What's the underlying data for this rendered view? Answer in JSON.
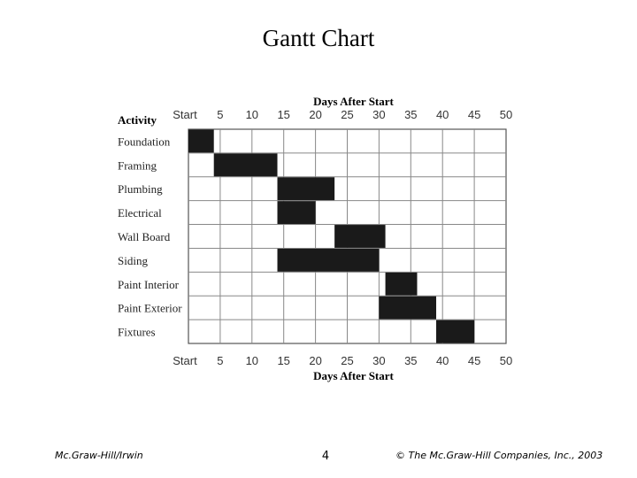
{
  "slide": {
    "title": "Gantt Chart",
    "footer_left": "Mc.Graw-Hill/Irwin",
    "page_number": "4",
    "footer_right": "© The Mc.Graw-Hill Companies, Inc., 2003"
  },
  "chart_data": {
    "type": "gantt",
    "title": "",
    "axis_title_top": "Days After Start",
    "axis_title_bottom": "Days After Start",
    "category_header": "Activity",
    "xlim": [
      0,
      50
    ],
    "x_ticks": [
      {
        "value": 0,
        "label": "Start"
      },
      {
        "value": 5,
        "label": "5"
      },
      {
        "value": 10,
        "label": "10"
      },
      {
        "value": 15,
        "label": "15"
      },
      {
        "value": 20,
        "label": "20"
      },
      {
        "value": 25,
        "label": "25"
      },
      {
        "value": 30,
        "label": "30"
      },
      {
        "value": 35,
        "label": "35"
      },
      {
        "value": 40,
        "label": "40"
      },
      {
        "value": 45,
        "label": "45"
      },
      {
        "value": 50,
        "label": "50"
      }
    ],
    "grid": true,
    "bar_color": "#1a1a1a",
    "tasks": [
      {
        "name": "Foundation",
        "start": 0,
        "end": 4
      },
      {
        "name": "Framing",
        "start": 4,
        "end": 14
      },
      {
        "name": "Plumbing",
        "start": 14,
        "end": 23
      },
      {
        "name": "Electrical",
        "start": 14,
        "end": 20
      },
      {
        "name": "Wall Board",
        "start": 23,
        "end": 31
      },
      {
        "name": "Siding",
        "start": 14,
        "end": 30
      },
      {
        "name": "Paint Interior",
        "start": 31,
        "end": 36
      },
      {
        "name": "Paint Exterior",
        "start": 30,
        "end": 39
      },
      {
        "name": "Fixtures",
        "start": 39,
        "end": 45
      }
    ]
  }
}
